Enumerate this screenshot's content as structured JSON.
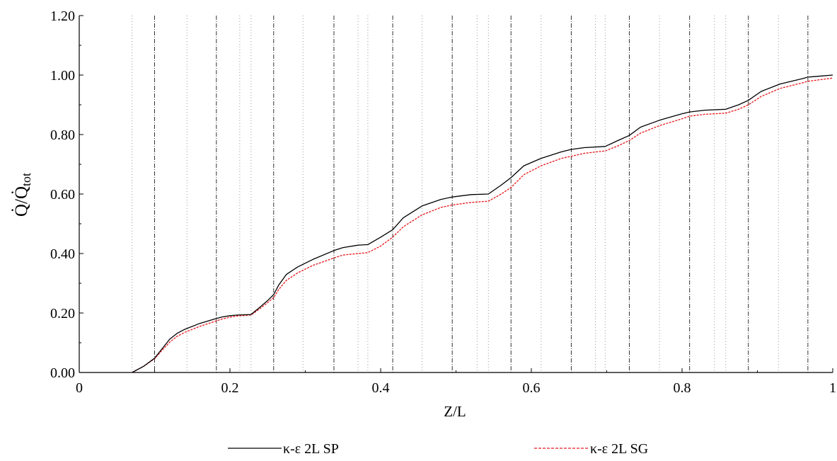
{
  "chart_data": {
    "type": "line",
    "xlabel": "Z/L",
    "ylabel_main": "Q̇/Q̇",
    "ylabel_sub": "tot",
    "xlim": [
      0,
      1
    ],
    "ylim": [
      0,
      1.2
    ],
    "x_ticks": [
      "0",
      "0.2",
      "0.4",
      "0.6",
      "0.8",
      "1"
    ],
    "x_tick_values": [
      0,
      0.2,
      0.4,
      0.6,
      0.8,
      1.0
    ],
    "y_ticks": [
      "0.00",
      "0.20",
      "0.40",
      "0.60",
      "0.80",
      "1.00",
      "1.20"
    ],
    "y_tick_values": [
      0,
      0.2,
      0.4,
      0.6,
      0.8,
      1.0,
      1.2
    ],
    "vertical_lines_dashdot": [
      0.1,
      0.182,
      0.258,
      0.338,
      0.416,
      0.495,
      0.573,
      0.653,
      0.73,
      0.81,
      0.888,
      0.967
    ],
    "vertical_lines_dotted": [
      0.07,
      0.143,
      0.213,
      0.228,
      0.297,
      0.37,
      0.383,
      0.455,
      0.528,
      0.543,
      0.613,
      0.685,
      0.698,
      0.77,
      0.843,
      0.858,
      0.928
    ],
    "legend_position": "bottom",
    "series": [
      {
        "name": "κ-ε 2L SP",
        "color": "#000000",
        "style": "solid",
        "x": [
          0.07,
          0.085,
          0.1,
          0.11,
          0.12,
          0.13,
          0.14,
          0.16,
          0.18,
          0.19,
          0.2,
          0.21,
          0.228,
          0.24,
          0.25,
          0.258,
          0.265,
          0.275,
          0.29,
          0.31,
          0.338,
          0.35,
          0.37,
          0.383,
          0.4,
          0.416,
          0.43,
          0.455,
          0.48,
          0.495,
          0.52,
          0.543,
          0.56,
          0.573,
          0.59,
          0.613,
          0.64,
          0.653,
          0.67,
          0.698,
          0.715,
          0.73,
          0.745,
          0.77,
          0.8,
          0.81,
          0.83,
          0.858,
          0.875,
          0.888,
          0.905,
          0.93,
          0.96,
          0.967,
          0.985,
          1.0
        ],
        "values": [
          0.0,
          0.02,
          0.048,
          0.08,
          0.112,
          0.132,
          0.145,
          0.165,
          0.18,
          0.187,
          0.191,
          0.193,
          0.195,
          0.22,
          0.242,
          0.262,
          0.295,
          0.33,
          0.355,
          0.38,
          0.41,
          0.42,
          0.428,
          0.43,
          0.455,
          0.48,
          0.52,
          0.56,
          0.582,
          0.59,
          0.598,
          0.6,
          0.63,
          0.655,
          0.695,
          0.72,
          0.742,
          0.75,
          0.756,
          0.76,
          0.78,
          0.797,
          0.825,
          0.848,
          0.87,
          0.876,
          0.882,
          0.885,
          0.9,
          0.915,
          0.945,
          0.97,
          0.988,
          0.993,
          0.997,
          1.0
        ]
      },
      {
        "name": "κ-ε 2L SG",
        "color": "#e8191d",
        "style": "dashed",
        "x": [
          0.07,
          0.085,
          0.1,
          0.11,
          0.12,
          0.13,
          0.14,
          0.16,
          0.18,
          0.19,
          0.2,
          0.21,
          0.228,
          0.24,
          0.25,
          0.258,
          0.265,
          0.275,
          0.29,
          0.31,
          0.338,
          0.35,
          0.37,
          0.383,
          0.4,
          0.416,
          0.43,
          0.455,
          0.48,
          0.495,
          0.52,
          0.543,
          0.56,
          0.573,
          0.59,
          0.613,
          0.64,
          0.653,
          0.67,
          0.698,
          0.715,
          0.73,
          0.745,
          0.77,
          0.8,
          0.81,
          0.83,
          0.858,
          0.875,
          0.888,
          0.905,
          0.93,
          0.96,
          0.967,
          0.985,
          1.0
        ],
        "values": [
          0.0,
          0.02,
          0.046,
          0.075,
          0.102,
          0.122,
          0.135,
          0.155,
          0.172,
          0.18,
          0.186,
          0.19,
          0.193,
          0.215,
          0.235,
          0.252,
          0.28,
          0.31,
          0.335,
          0.36,
          0.385,
          0.395,
          0.4,
          0.403,
          0.425,
          0.455,
          0.49,
          0.53,
          0.555,
          0.563,
          0.572,
          0.576,
          0.6,
          0.622,
          0.665,
          0.695,
          0.72,
          0.727,
          0.737,
          0.745,
          0.762,
          0.78,
          0.805,
          0.83,
          0.853,
          0.862,
          0.868,
          0.872,
          0.885,
          0.9,
          0.928,
          0.955,
          0.974,
          0.979,
          0.985,
          0.99
        ]
      }
    ]
  }
}
